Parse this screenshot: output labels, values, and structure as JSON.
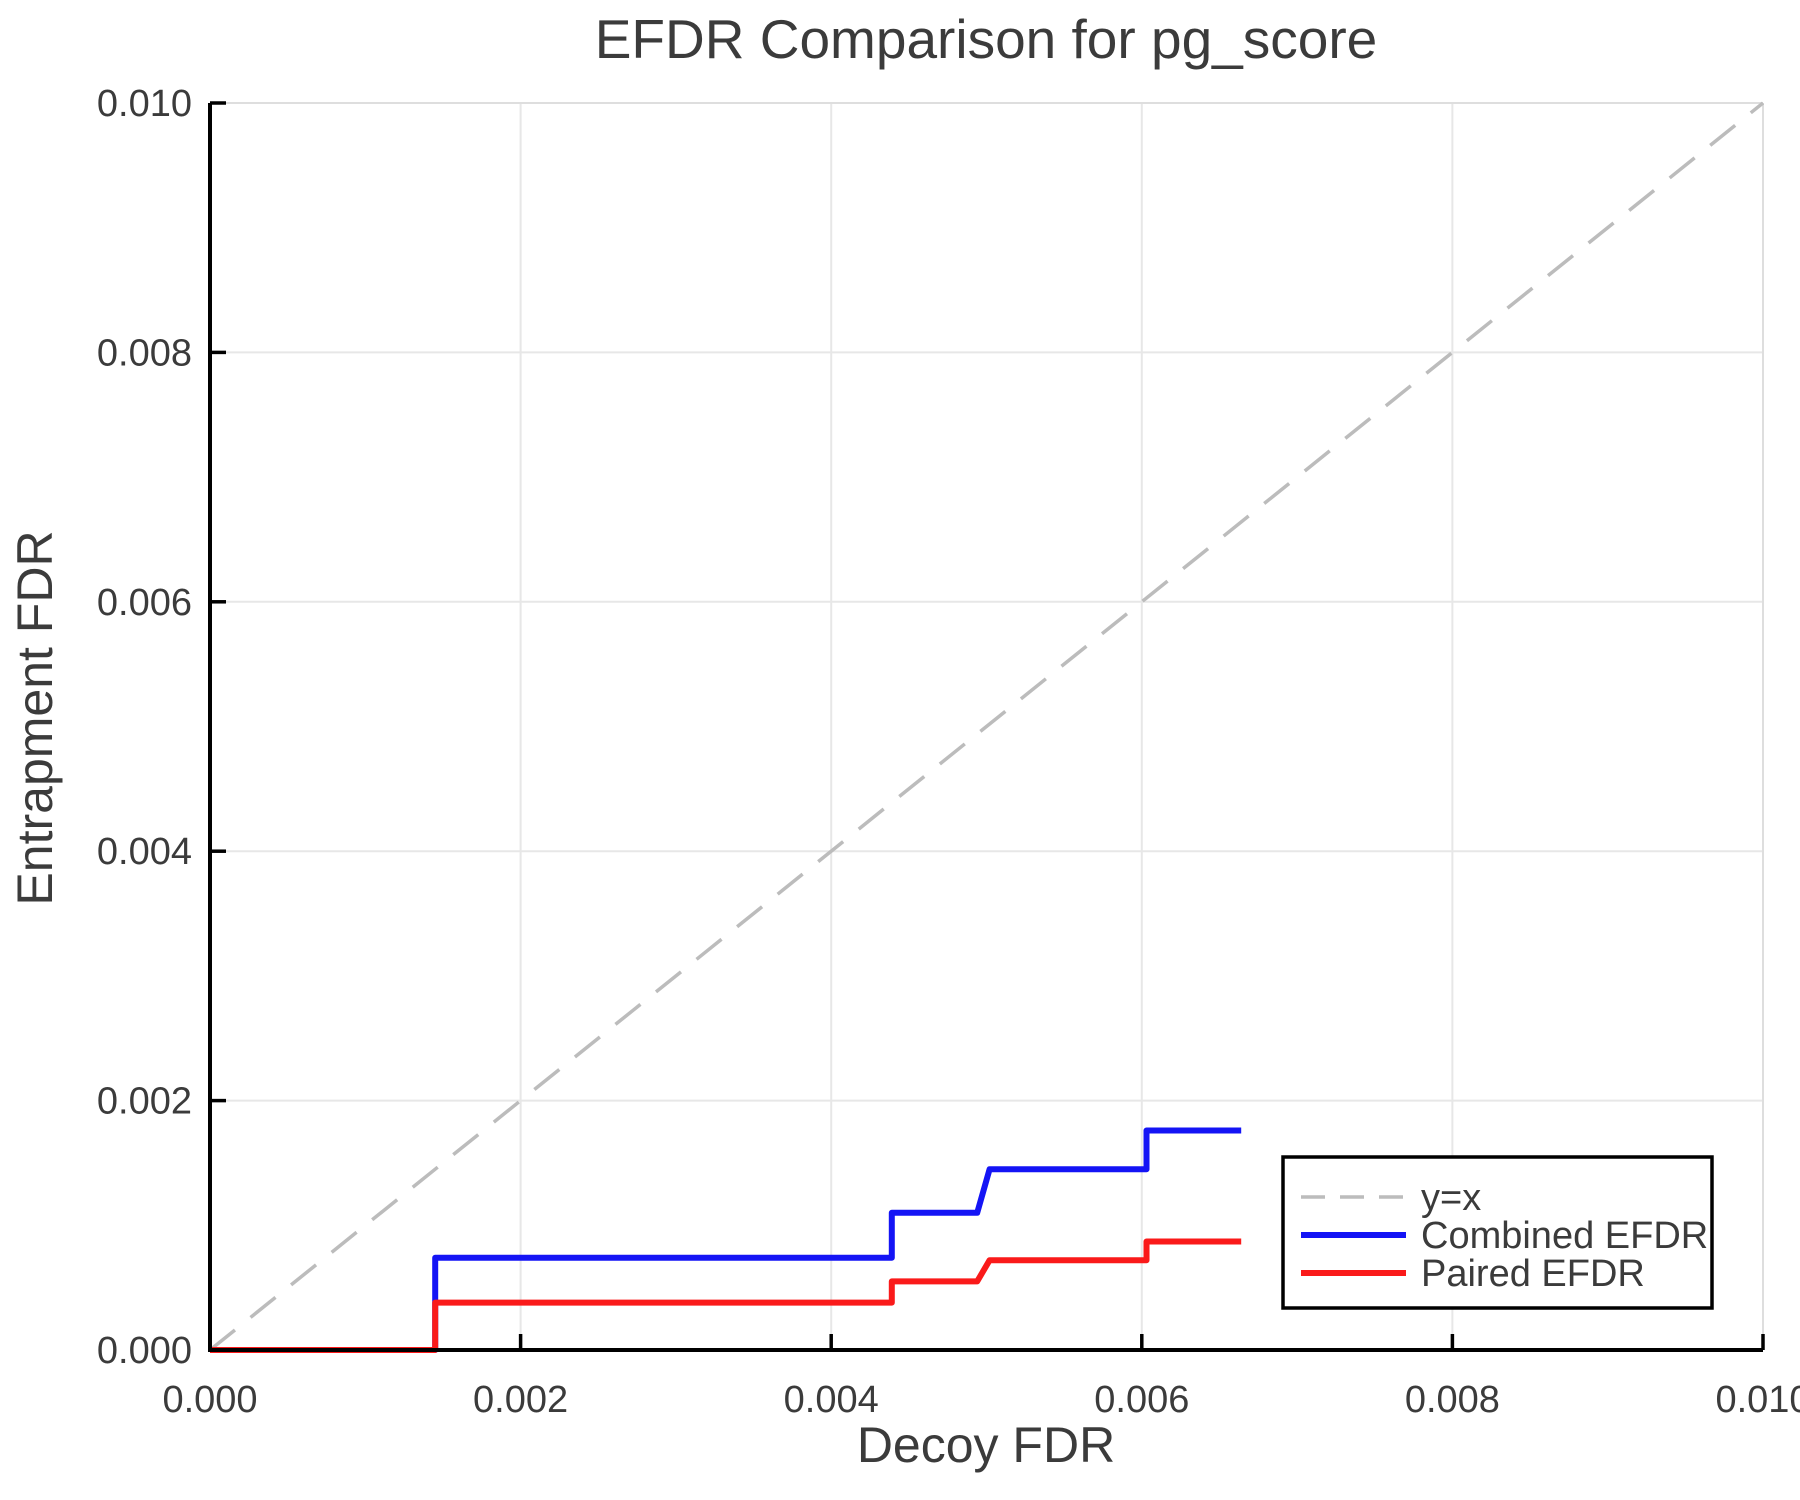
{
  "chart_data": {
    "type": "line",
    "title": "EFDR Comparison for pg_score",
    "xlabel": "Decoy FDR",
    "ylabel": "Entrapment FDR",
    "xlim": [
      0.0,
      0.01
    ],
    "ylim": [
      0.0,
      0.01
    ],
    "x_tick_values": [
      0.0,
      0.002,
      0.004,
      0.006,
      0.008,
      0.01
    ],
    "x_tick_labels": [
      "0.000",
      "0.002",
      "0.004",
      "0.006",
      "0.008",
      "0.010"
    ],
    "y_tick_values": [
      0.0,
      0.002,
      0.004,
      0.006,
      0.008,
      0.01
    ],
    "y_tick_labels": [
      "0.000",
      "0.002",
      "0.004",
      "0.006",
      "0.008",
      "0.010"
    ],
    "grid": true,
    "legend_position": "lower right",
    "series": [
      {
        "name": "y=x",
        "role": "identity-reference",
        "line_style": "dashed",
        "color": "#bcbcbc",
        "x": [
          0.0,
          0.01
        ],
        "y": [
          0.0,
          0.01
        ]
      },
      {
        "name": "Combined EFDR",
        "role": "step-curve",
        "line_style": "solid",
        "color": "#1414f5",
        "x": [
          0.0,
          0.00145,
          0.00145,
          0.00439,
          0.00439,
          0.00494,
          0.00502,
          0.00603,
          0.00603,
          0.00664
        ],
        "y": [
          0.0,
          0.0,
          0.00074,
          0.00074,
          0.0011,
          0.0011,
          0.00145,
          0.00145,
          0.00176,
          0.00176
        ]
      },
      {
        "name": "Paired EFDR",
        "role": "step-curve",
        "line_style": "solid",
        "color": "#fa1a1a",
        "x": [
          0.0,
          0.00145,
          0.00145,
          0.00439,
          0.00439,
          0.00494,
          0.00502,
          0.00603,
          0.00603,
          0.00664
        ],
        "y": [
          0.0,
          0.0,
          0.00038,
          0.00038,
          0.00055,
          0.00055,
          0.00072,
          0.00072,
          0.00087,
          0.00087
        ]
      }
    ],
    "colors": {
      "axis_text": "#3b3b3b",
      "grid": "#e7e7e7",
      "spine": "#000000",
      "frame_top_right": "#dedede",
      "background": "#ffffff",
      "legend_border": "#000000"
    }
  }
}
